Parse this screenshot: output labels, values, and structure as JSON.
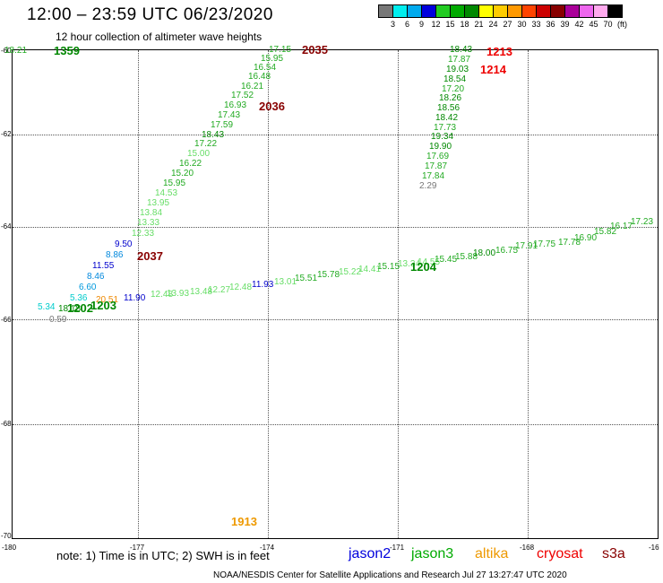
{
  "title": "12:00 – 23:59 UTC 06/23/2020",
  "subtitle": "12 hour collection of altimeter wave heights",
  "legend": {
    "colors": [
      "#777777",
      "#00eeee",
      "#00aaee",
      "#0000dd",
      "#22cc22",
      "#00aa00",
      "#008800",
      "#ffff00",
      "#ffcc00",
      "#ff9900",
      "#ff4400",
      "#cc0000",
      "#880000",
      "#aa0099",
      "#ee66ee",
      "#ffaaee",
      "#000000"
    ],
    "labels": [
      "3",
      "6",
      "9",
      "12",
      "15",
      "18",
      "21",
      "24",
      "27",
      "30",
      "33",
      "36",
      "39",
      "42",
      "45",
      "70",
      "(ft)"
    ]
  },
  "y_labels": [
    "-60",
    "-62",
    "-64",
    "-66",
    "-68",
    "-70"
  ],
  "x_labels": [
    "-180",
    "-177",
    "-174",
    "-171",
    "-168",
    "-16"
  ],
  "points": [
    {
      "t": "18.21",
      "c": "#22aa22"
    },
    {
      "t": "17.15",
      "c": "#22aa22"
    },
    {
      "t": "15.95",
      "c": "#22aa22"
    },
    {
      "t": "16.54",
      "c": "#22aa22"
    },
    {
      "t": "16.48",
      "c": "#22aa22"
    },
    {
      "t": "16.21",
      "c": "#22aa22"
    },
    {
      "t": "17.52",
      "c": "#22aa22"
    },
    {
      "t": "16.93",
      "c": "#22aa22"
    },
    {
      "t": "17.43",
      "c": "#22aa22"
    },
    {
      "t": "17.59",
      "c": "#22aa22"
    },
    {
      "t": "18.43",
      "c": "#008800"
    },
    {
      "t": "17.22",
      "c": "#22aa22"
    },
    {
      "t": "15.00",
      "c": "#66dd66"
    },
    {
      "t": "16.22",
      "c": "#22aa22"
    },
    {
      "t": "15.20",
      "c": "#22aa22"
    },
    {
      "t": "15.95",
      "c": "#22aa22"
    },
    {
      "t": "14.53",
      "c": "#66dd66"
    },
    {
      "t": "13.95",
      "c": "#66dd66"
    },
    {
      "t": "13.84",
      "c": "#66dd66"
    },
    {
      "t": "13.33",
      "c": "#66dd66"
    },
    {
      "t": "12.33",
      "c": "#66dd66"
    },
    {
      "t": "9.50",
      "c": "#0000cc"
    },
    {
      "t": "8.86",
      "c": "#0088dd"
    },
    {
      "t": "11.55",
      "c": "#0000cc"
    },
    {
      "t": "8.46",
      "c": "#0088dd"
    },
    {
      "t": "6.60",
      "c": "#0099dd"
    },
    {
      "t": "5.36",
      "c": "#00cccc"
    },
    {
      "t": "5.34",
      "c": "#00cccc"
    },
    {
      "t": "0.59",
      "c": "#777777"
    },
    {
      "t": "18.18",
      "c": "#008800"
    },
    {
      "t": "20.51",
      "c": "#ee8800"
    },
    {
      "t": "11.90",
      "c": "#0000cc"
    },
    {
      "t": "12.48",
      "c": "#66dd66"
    },
    {
      "t": "13.93",
      "c": "#66dd66"
    },
    {
      "t": "13.48",
      "c": "#66dd66"
    },
    {
      "t": "12.27",
      "c": "#66dd66"
    },
    {
      "t": "12.48",
      "c": "#66dd66"
    },
    {
      "t": "11.93",
      "c": "#0000cc"
    },
    {
      "t": "13.01",
      "c": "#66dd66"
    },
    {
      "t": "15.51",
      "c": "#22aa22"
    },
    {
      "t": "15.78",
      "c": "#22aa22"
    },
    {
      "t": "15.22",
      "c": "#66dd66"
    },
    {
      "t": "14.41",
      "c": "#66dd66"
    },
    {
      "t": "15.15",
      "c": "#22aa22"
    },
    {
      "t": "13.34",
      "c": "#66dd66"
    },
    {
      "t": "14.55",
      "c": "#66dd66"
    },
    {
      "t": "15.45",
      "c": "#22aa22"
    },
    {
      "t": "15.88",
      "c": "#22aa22"
    },
    {
      "t": "18.00",
      "c": "#008800"
    },
    {
      "t": "16.75",
      "c": "#22aa22"
    },
    {
      "t": "17.91",
      "c": "#22aa22"
    },
    {
      "t": "17.75",
      "c": "#22aa22"
    },
    {
      "t": "17.78",
      "c": "#22aa22"
    },
    {
      "t": "16.90",
      "c": "#22aa22"
    },
    {
      "t": "15.82",
      "c": "#22aa22"
    },
    {
      "t": "16.17",
      "c": "#22aa22"
    },
    {
      "t": "17.23",
      "c": "#22aa22"
    },
    {
      "t": "18.43",
      "c": "#008800"
    },
    {
      "t": "17.87",
      "c": "#22aa22"
    },
    {
      "t": "19.03",
      "c": "#008800"
    },
    {
      "t": "18.54",
      "c": "#008800"
    },
    {
      "t": "17.20",
      "c": "#22aa22"
    },
    {
      "t": "18.26",
      "c": "#008800"
    },
    {
      "t": "18.56",
      "c": "#008800"
    },
    {
      "t": "18.42",
      "c": "#008800"
    },
    {
      "t": "17.73",
      "c": "#22aa22"
    },
    {
      "t": "19.34",
      "c": "#008800"
    },
    {
      "t": "19.90",
      "c": "#008800"
    },
    {
      "t": "17.69",
      "c": "#22aa22"
    },
    {
      "t": "17.87",
      "c": "#22aa22"
    },
    {
      "t": "17.84",
      "c": "#22aa22"
    },
    {
      "t": "2.29",
      "c": "#777777"
    }
  ],
  "times": [
    {
      "t": "1359",
      "c": "#008800"
    },
    {
      "t": "2035",
      "c": "#880000"
    },
    {
      "t": "2036",
      "c": "#880000"
    },
    {
      "t": "2037",
      "c": "#880000"
    },
    {
      "t": "1202",
      "c": "#008800"
    },
    {
      "t": "1203",
      "c": "#008800"
    },
    {
      "t": "1204",
      "c": "#008800"
    },
    {
      "t": "1213",
      "c": "#ee0000"
    },
    {
      "t": "1214",
      "c": "#ee0000"
    },
    {
      "t": "1913",
      "c": "#ee9900"
    }
  ],
  "note": "note: 1) Time is in UTC; 2) SWH is in feet",
  "satellites": [
    {
      "t": "jason2",
      "c": "#0000dd"
    },
    {
      "t": "jason3",
      "c": "#00aa00"
    },
    {
      "t": "altika",
      "c": "#ee9900"
    },
    {
      "t": "cryosat",
      "c": "#ee0000"
    },
    {
      "t": "s3a",
      "c": "#880000"
    }
  ],
  "credit": "NOAA/NESDIS Center for Satellite Applications and Research    Jul 27 13:27:47 UTC 2020"
}
